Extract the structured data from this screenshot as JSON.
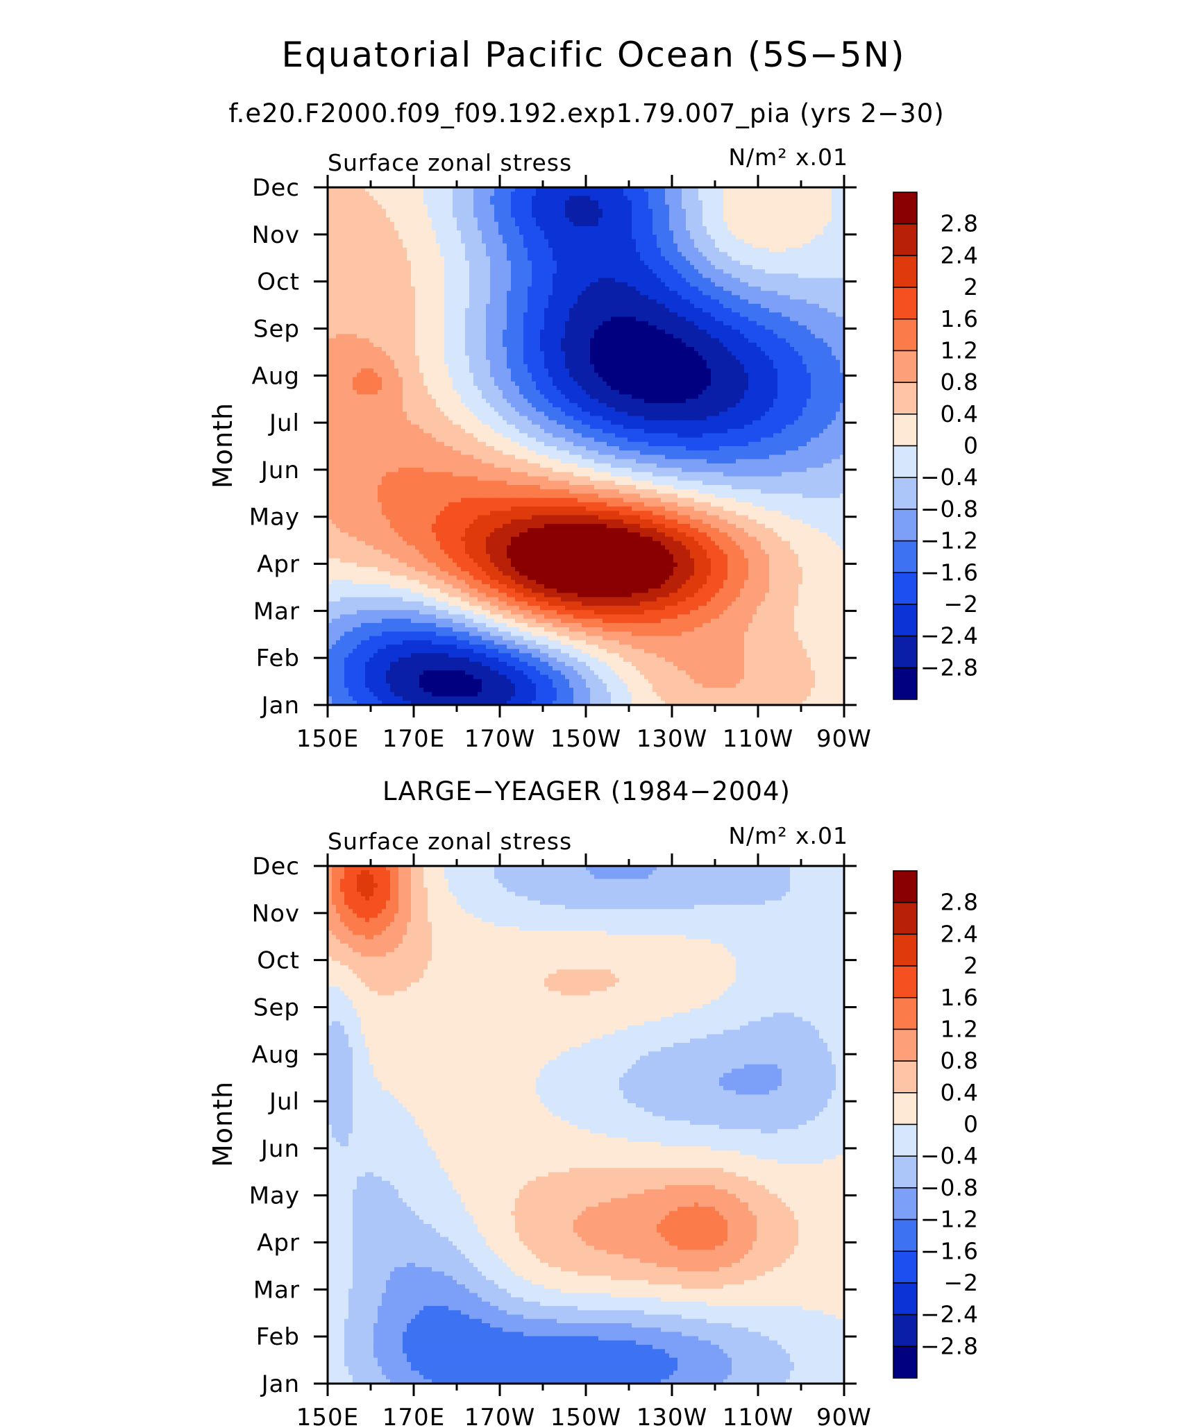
{
  "figure": {
    "title": "Equatorial Pacific Ocean (5S−5N)"
  },
  "colors": {
    "levels": [
      "#000080",
      "#0a1fa8",
      "#0b33d6",
      "#1d4ff0",
      "#3d73f3",
      "#7ca0f7",
      "#adc6fa",
      "#d6e7fd",
      "#fde9d6",
      "#fdc5a6",
      "#fda07a",
      "#fb7b4b",
      "#f5501f",
      "#de3a0c",
      "#b82007",
      "#8a0000"
    ]
  },
  "chart_data": [
    {
      "type": "heatmap",
      "subtitle": "f.e20.F2000.f09_f09.192.exp1.79.007_pia (yrs 2−30)",
      "left_label": "Surface zonal stress",
      "units": "N/m² x.01",
      "xlabel": "",
      "ylabel": "Month",
      "x_ticks": [
        "150E",
        "170E",
        "170W",
        "150W",
        "130W",
        "110W",
        "90W"
      ],
      "y_ticks": [
        "Jan",
        "Feb",
        "Mar",
        "Apr",
        "May",
        "Jun",
        "Jul",
        "Aug",
        "Sep",
        "Oct",
        "Nov",
        "Dec"
      ],
      "colorbar_labels": [
        "2.8",
        "2.4",
        "2",
        "1.6",
        "1.2",
        "0.8",
        "0.4",
        "0",
        "−0.4",
        "−0.8",
        "−1.2",
        "−1.6",
        "−2",
        "−2.4",
        "−2.8"
      ],
      "contour_levels": [
        -2.8,
        -2.4,
        -2.0,
        -1.6,
        -1.2,
        -0.8,
        -0.4,
        0,
        0.4,
        0.8,
        1.2,
        1.6,
        2.0,
        2.4,
        2.8
      ],
      "grid": false,
      "legend": "right colorbar",
      "lon_range": [
        150,
        270
      ],
      "month_range": [
        1,
        12
      ],
      "field": {
        "background": -0.2,
        "gaussians": [
          {
            "lon": 214,
            "month": 4.0,
            "slon": 24,
            "smon": 0.95,
            "rot": -35,
            "amp": 3.5
          },
          {
            "lon": 196,
            "month": 5.5,
            "slon": 30,
            "smon": 1.4,
            "rot": -32,
            "amp": 1.2
          },
          {
            "lon": 158,
            "month": 8.4,
            "slon": 26,
            "smon": 3.6,
            "rot": 0,
            "amp": 1.1
          },
          {
            "lon": 160,
            "month": 7.9,
            "slon": 5,
            "smon": 0.4,
            "rot": 0,
            "amp": 0.5
          },
          {
            "lon": 246,
            "month": 11.3,
            "slon": 14,
            "smon": 1.1,
            "rot": 0,
            "amp": 0.9
          },
          {
            "lon": 228,
            "month": 7.7,
            "slon": 30,
            "smon": 1.5,
            "rot": 0,
            "amp": -2.7
          },
          {
            "lon": 212,
            "month": 10.4,
            "slon": 20,
            "smon": 1.7,
            "rot": 20,
            "amp": -1.6
          },
          {
            "lon": 205,
            "month": 11.9,
            "slon": 18,
            "smon": 0.8,
            "rot": 0,
            "amp": -1.2
          },
          {
            "lon": 168,
            "month": 2.0,
            "slon": 18,
            "smon": 1.2,
            "rot": 0,
            "amp": -1.9
          },
          {
            "lon": 192,
            "month": 1.3,
            "slon": 20,
            "smon": 0.8,
            "rot": 0,
            "amp": -2.0
          },
          {
            "lon": 235,
            "month": 1.5,
            "slon": 25,
            "smon": 1.0,
            "rot": 0,
            "amp": 1.1
          }
        ]
      }
    },
    {
      "type": "heatmap",
      "subtitle": "LARGE−YEAGER (1984−2004)",
      "left_label": "Surface zonal stress",
      "units": "N/m² x.01",
      "xlabel": "",
      "ylabel": "Month",
      "x_ticks": [
        "150E",
        "170E",
        "170W",
        "150W",
        "130W",
        "110W",
        "90W"
      ],
      "y_ticks": [
        "Jan",
        "Feb",
        "Mar",
        "Apr",
        "May",
        "Jun",
        "Jul",
        "Aug",
        "Sep",
        "Oct",
        "Nov",
        "Dec"
      ],
      "colorbar_labels": [
        "2.8",
        "2.4",
        "2",
        "1.6",
        "1.2",
        "0.8",
        "0.4",
        "0",
        "−0.4",
        "−0.8",
        "−1.2",
        "−1.6",
        "−2",
        "−2.4",
        "−2.8"
      ],
      "contour_levels": [
        -2.8,
        -2.4,
        -2.0,
        -1.6,
        -1.2,
        -0.8,
        -0.4,
        0,
        0.4,
        0.8,
        1.2,
        1.6,
        2.0,
        2.4,
        2.8
      ],
      "grid": false,
      "legend": "right colorbar",
      "lon_range": [
        150,
        270
      ],
      "month_range": [
        1,
        12
      ],
      "field": {
        "background": 0.15,
        "gaussians": [
          {
            "lon": 159,
            "month": 11.7,
            "slon": 7,
            "smon": 0.9,
            "rot": 0,
            "amp": 1.6
          },
          {
            "lon": 160,
            "month": 11.0,
            "slon": 12,
            "smon": 1.4,
            "rot": 0,
            "amp": 0.5
          },
          {
            "lon": 222,
            "month": 4.3,
            "slon": 26,
            "smon": 1.0,
            "rot": 0,
            "amp": 0.8
          },
          {
            "lon": 238,
            "month": 4.3,
            "slon": 9,
            "smon": 0.8,
            "rot": 0,
            "amp": 0.6
          },
          {
            "lon": 212,
            "month": 9.6,
            "slon": 20,
            "smon": 0.9,
            "rot": 0,
            "amp": 0.35
          },
          {
            "lon": 210,
            "month": 1.4,
            "slon": 32,
            "smon": 0.9,
            "rot": 0,
            "amp": -1.7
          },
          {
            "lon": 175,
            "month": 2.8,
            "slon": 12,
            "smon": 1.5,
            "rot": 0,
            "amp": -1.0
          },
          {
            "lon": 160,
            "month": 4.8,
            "slon": 8,
            "smon": 1.6,
            "rot": 0,
            "amp": -0.5
          },
          {
            "lon": 239,
            "month": 7.4,
            "slon": 22,
            "smon": 1.0,
            "rot": 0,
            "amp": -0.9
          },
          {
            "lon": 218,
            "month": 11.9,
            "slon": 28,
            "smon": 0.9,
            "rot": 0,
            "amp": -1.0
          },
          {
            "lon": 152,
            "month": 7.9,
            "slon": 4,
            "smon": 1.3,
            "rot": 0,
            "amp": -0.8
          },
          {
            "lon": 258,
            "month": 9.0,
            "slon": 10,
            "smon": 2.5,
            "rot": 0,
            "amp": -0.35
          }
        ]
      }
    }
  ]
}
